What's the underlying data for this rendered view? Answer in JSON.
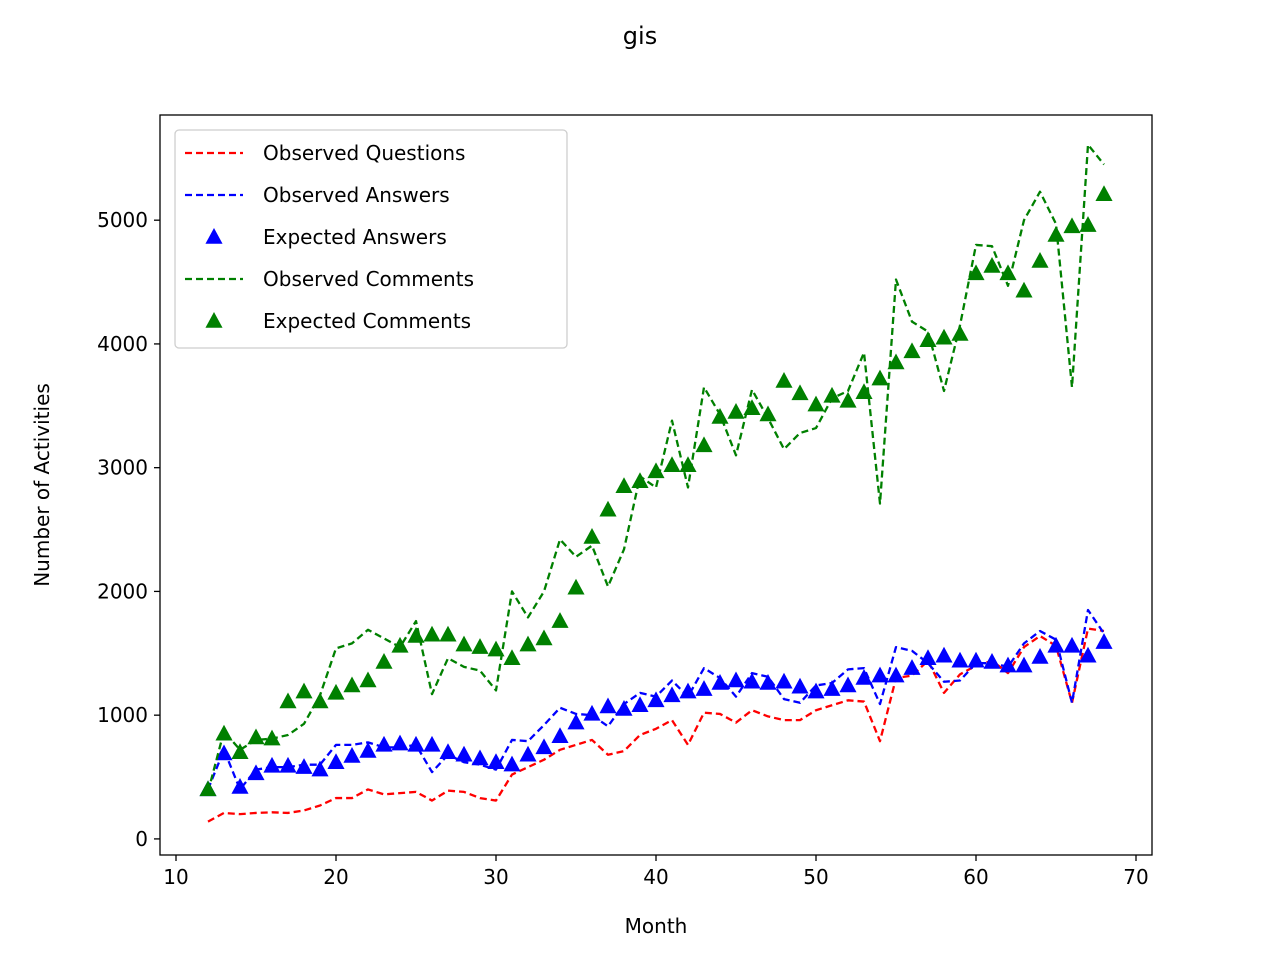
{
  "chart_data": {
    "type": "line",
    "title": "gis",
    "xlabel": "Month",
    "ylabel": "Number of Activities",
    "xlim": [
      9,
      71
    ],
    "ylim": [
      -130,
      5850
    ],
    "xticks": [
      10,
      20,
      30,
      40,
      50,
      60,
      70
    ],
    "yticks": [
      0,
      1000,
      2000,
      3000,
      4000,
      5000
    ],
    "grid": false,
    "legend_position": "top-left",
    "x": [
      12,
      13,
      14,
      15,
      16,
      17,
      18,
      19,
      20,
      21,
      22,
      23,
      24,
      25,
      26,
      27,
      28,
      29,
      30,
      31,
      32,
      33,
      34,
      35,
      36,
      37,
      38,
      39,
      40,
      41,
      42,
      43,
      44,
      45,
      46,
      47,
      48,
      49,
      50,
      51,
      52,
      53,
      54,
      55,
      56,
      57,
      58,
      59,
      60,
      61,
      62,
      63,
      64,
      65,
      66,
      67,
      68
    ],
    "series": [
      {
        "name": "Observed Questions",
        "style": "dashed",
        "color": "#ff0000",
        "values": [
          140,
          210,
          200,
          210,
          215,
          210,
          230,
          270,
          330,
          330,
          400,
          360,
          370,
          380,
          310,
          390,
          380,
          330,
          310,
          520,
          580,
          640,
          720,
          760,
          800,
          680,
          710,
          840,
          890,
          960,
          760,
          1020,
          1010,
          940,
          1040,
          990,
          960,
          960,
          1040,
          1080,
          1120,
          1110,
          790,
          1300,
          1320,
          1440,
          1180,
          1330,
          1400,
          1440,
          1340,
          1550,
          1640,
          1560,
          1100,
          1700,
          1680
        ]
      },
      {
        "name": "Observed Answers",
        "style": "dashed",
        "color": "#0000ff",
        "values": [
          400,
          720,
          400,
          560,
          580,
          580,
          600,
          600,
          760,
          760,
          780,
          740,
          740,
          760,
          540,
          680,
          620,
          600,
          560,
          800,
          790,
          920,
          1060,
          1010,
          1000,
          910,
          1090,
          1180,
          1150,
          1280,
          1150,
          1380,
          1300,
          1150,
          1340,
          1310,
          1130,
          1100,
          1240,
          1260,
          1370,
          1380,
          1090,
          1550,
          1520,
          1420,
          1270,
          1280,
          1420,
          1420,
          1390,
          1580,
          1680,
          1610,
          1100,
          1850,
          1660
        ]
      },
      {
        "name": "Expected Answers",
        "style": "triangle",
        "color": "#0000ff",
        "values": [
          400,
          690,
          420,
          530,
          590,
          590,
          580,
          560,
          620,
          670,
          710,
          760,
          770,
          760,
          760,
          700,
          680,
          650,
          620,
          600,
          680,
          740,
          830,
          940,
          1010,
          1070,
          1050,
          1080,
          1120,
          1160,
          1190,
          1210,
          1260,
          1280,
          1270,
          1260,
          1270,
          1230,
          1190,
          1210,
          1240,
          1300,
          1320,
          1320,
          1380,
          1460,
          1480,
          1440,
          1440,
          1430,
          1400,
          1400,
          1470,
          1560,
          1560,
          1480,
          1590
        ]
      },
      {
        "name": "Observed Comments",
        "style": "dashed",
        "color": "#008000",
        "values": [
          380,
          870,
          720,
          800,
          810,
          840,
          930,
          1160,
          1540,
          1580,
          1690,
          1620,
          1550,
          1760,
          1170,
          1460,
          1390,
          1360,
          1200,
          2000,
          1790,
          2000,
          2420,
          2280,
          2370,
          2040,
          2340,
          2930,
          2840,
          3380,
          2840,
          3650,
          3430,
          3100,
          3630,
          3400,
          3150,
          3280,
          3320,
          3560,
          3620,
          3930,
          2710,
          4520,
          4180,
          4100,
          3620,
          4150,
          4800,
          4790,
          4470,
          5000,
          5230,
          4970,
          3650,
          5610,
          5450
        ]
      },
      {
        "name": "Expected Comments",
        "style": "triangle",
        "color": "#008000",
        "values": [
          400,
          850,
          700,
          820,
          810,
          1110,
          1190,
          1110,
          1180,
          1240,
          1280,
          1430,
          1560,
          1640,
          1650,
          1650,
          1570,
          1550,
          1530,
          1460,
          1570,
          1620,
          1760,
          2030,
          2440,
          2660,
          2850,
          2890,
          2970,
          3020,
          3020,
          3180,
          3410,
          3450,
          3480,
          3430,
          3700,
          3600,
          3510,
          3580,
          3540,
          3610,
          3720,
          3850,
          3940,
          4030,
          4050,
          4080,
          4570,
          4630,
          4570,
          4430,
          4670,
          4880,
          4950,
          4960,
          5210
        ]
      }
    ]
  }
}
